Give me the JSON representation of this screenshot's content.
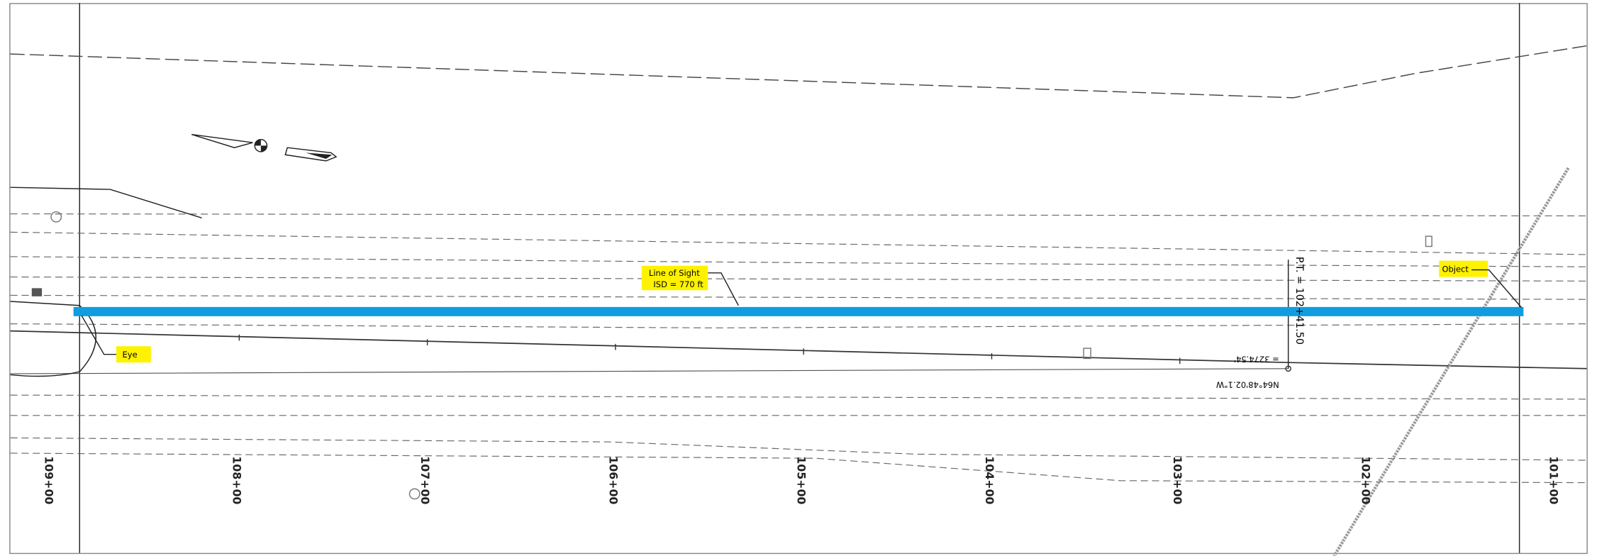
{
  "callouts": {
    "line_of_sight": "Line of Sight",
    "isd": "ISD = 770 ft",
    "eye": "Eye",
    "object": "Object"
  },
  "stations": [
    "109+00",
    "108+00",
    "107+00",
    "106+00",
    "105+00",
    "104+00",
    "103+00",
    "102+00",
    "101+00"
  ],
  "annotations": {
    "pt": "P.T. = 102+41.50",
    "bearing": "N64°48'02.1\"W",
    "distance": "= 3274.54'"
  }
}
